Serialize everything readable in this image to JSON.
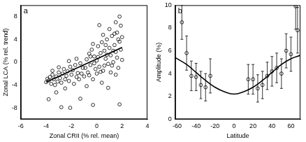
{
  "chart_data": [
    {
      "type": "scatter",
      "annotations": [
        "a"
      ],
      "xlabel": "Zonal CRII (% rel. mean)",
      "ylabel": "Zonal LCA (% rel. trend)",
      "xlim": [
        -6,
        4
      ],
      "xticks": [
        -6,
        -4,
        -2,
        0,
        2,
        4
      ],
      "ylim": [
        -10,
        10
      ],
      "yticks": [
        -8,
        -4,
        0,
        4,
        8
      ],
      "grid": false,
      "series": [
        {
          "color": "#000000",
          "marker": "circle",
          "x": [
            -4.0,
            -3.9,
            -3.8,
            -3.7,
            -3.6,
            -3.5,
            -3.4,
            -3.3,
            -3.2,
            -3.1,
            -3.0,
            -2.9,
            -2.8,
            -2.7,
            -2.6,
            -2.5,
            -2.4,
            -2.3,
            -2.2,
            -2.1,
            -2.0,
            -1.9,
            -1.8,
            -1.7,
            -1.6,
            -1.5,
            -1.4,
            -1.3,
            -1.2,
            -1.1,
            -3.8,
            -2.8,
            -2.1,
            -3.2,
            -1.3,
            -2.5,
            -3.0,
            -1.6,
            -2.2,
            -3.5,
            -1.0,
            -0.9,
            -0.8,
            -0.7,
            -0.6,
            -0.5,
            -0.4,
            -0.3,
            -0.2,
            -0.1,
            0.0,
            0.1,
            0.2,
            0.3,
            0.4,
            0.5,
            0.6,
            0.7,
            0.8,
            0.9,
            1.0,
            1.1,
            1.2,
            1.3,
            1.4,
            1.5,
            1.6,
            1.7,
            1.8,
            1.9,
            2.0,
            -0.6,
            0.0,
            0.5,
            1.0,
            1.5,
            0.3,
            -0.3,
            0.8,
            1.2,
            1.6,
            2.0,
            0.2,
            1.5,
            1.8,
            1.9,
            -0.3,
            1.8,
            0.9,
            -0.8,
            0.4,
            1.3,
            0.7,
            -0.2,
            1.1,
            0.6,
            -0.5,
            1.7,
            0.1,
            1.4
          ],
          "values": [
            -3.5,
            -2.9,
            -3.2,
            -2.6,
            -3.8,
            -2.2,
            -3.0,
            -4.0,
            -2.5,
            -3.4,
            -1.8,
            -2.8,
            -3.6,
            -2.0,
            -1.2,
            -3.0,
            -2.4,
            -1.6,
            -3.3,
            -0.8,
            -2.2,
            -1.4,
            -3.8,
            -0.5,
            -2.6,
            -1.9,
            -3.0,
            -0.2,
            -2.0,
            -1.0,
            -6.5,
            -7.9,
            -8.0,
            -5.3,
            -6.4,
            -4.6,
            -0.9,
            0.6,
            0.2,
            -1.5,
            -2.5,
            -1.0,
            0.5,
            -1.8,
            1.5,
            -0.5,
            2.2,
            -3.0,
            1.0,
            -1.2,
            0.3,
            2.8,
            -0.8,
            1.6,
            3.5,
            -1.5,
            2.0,
            0.6,
            4.0,
            -0.3,
            2.5,
            1.2,
            4.6,
            0.0,
            3.0,
            1.8,
            5.2,
            -1.0,
            3.6,
            2.2,
            4.4,
            -2.3,
            -2.0,
            4.8,
            5.8,
            -2.2,
            -1.7,
            3.2,
            1.3,
            -0.6,
            0.8,
            0.4,
            6.5,
            7.0,
            8.0,
            6.4,
            -7.5,
            -7.4,
            -4.5,
            -4.2,
            -3.6,
            2.0,
            3.0,
            -0.2,
            -1.8,
            -0.6,
            1.0,
            4.0,
            0.9,
            5.0
          ]
        },
        {
          "type": "line",
          "color": "#000000",
          "line_style": "solid",
          "x": [
            -4.0,
            2.0
          ],
          "values": [
            -3.5,
            2.6
          ]
        }
      ]
    },
    {
      "type": "scatter",
      "annotations": [
        "b"
      ],
      "xlabel": "Latitude",
      "ylabel": "Amplitude (%)",
      "xlim": [
        -62,
        70
      ],
      "xticks": [
        -60,
        -40,
        -20,
        0,
        20,
        40,
        60
      ],
      "ylim": [
        0,
        10
      ],
      "yticks": [
        0,
        2,
        4,
        6,
        8,
        10
      ],
      "grid": false,
      "series": [
        {
          "color": "#000000",
          "marker": "circle",
          "x": [
            -55,
            -50,
            -45,
            -40,
            -35,
            -30,
            -25,
            15,
            20,
            25,
            30,
            35,
            40,
            45,
            50,
            55,
            60,
            65,
            67
          ],
          "values": [
            8.5,
            5.8,
            3.8,
            3.7,
            3.0,
            2.8,
            3.8,
            3.5,
            3.5,
            2.7,
            3.0,
            3.8,
            4.2,
            4.5,
            4.0,
            6.0,
            5.7,
            9.9,
            7.8
          ],
          "errors": [
            1.5,
            1.5,
            1.3,
            1.2,
            1.2,
            1.2,
            1.5,
            1.3,
            1.3,
            1.2,
            1.2,
            1.2,
            1.3,
            1.3,
            1.3,
            1.5,
            1.5,
            2.0,
            2.0
          ]
        },
        {
          "type": "line",
          "color": "#000000",
          "line_style": "solid",
          "x": [
            -62,
            -50,
            -40,
            -30,
            -20,
            -10,
            0,
            10,
            20,
            30,
            40,
            50,
            60,
            70
          ],
          "values": [
            5.4,
            4.8,
            4.1,
            3.4,
            2.8,
            2.4,
            2.2,
            2.4,
            2.8,
            3.4,
            4.1,
            4.8,
            5.3,
            5.6
          ]
        }
      ]
    }
  ]
}
